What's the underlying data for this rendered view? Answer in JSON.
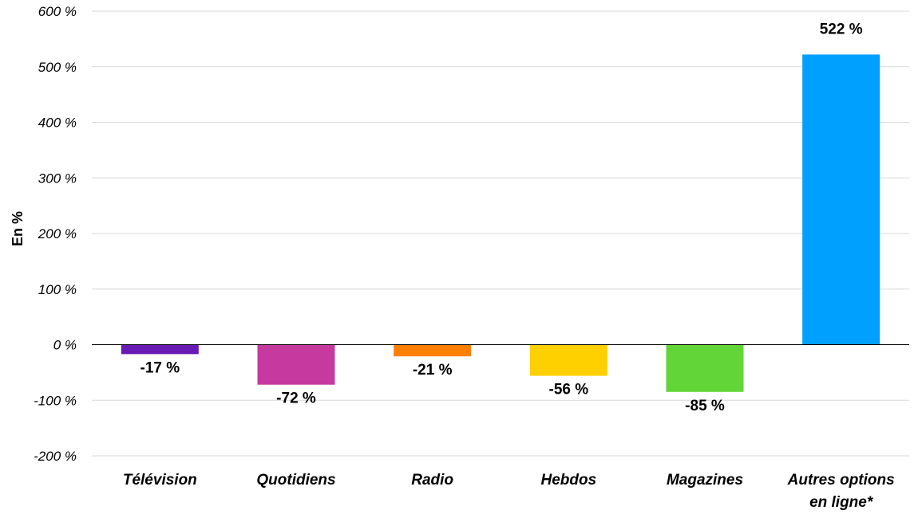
{
  "chart_data": {
    "type": "bar",
    "title": "",
    "xlabel": "",
    "ylabel": "En %",
    "ylim": [
      -200,
      600
    ],
    "yticks": [
      600,
      500,
      400,
      300,
      200,
      100,
      0,
      -100,
      -200
    ],
    "ytick_labels": [
      "600 %",
      "500 %",
      "400 %",
      "300 %",
      "200 %",
      "100 %",
      "0 %",
      "-100 %",
      "-200 %"
    ],
    "grid": true,
    "legend": "none",
    "categories": [
      [
        "Télévision"
      ],
      [
        "Quotidiens"
      ],
      [
        "Radio"
      ],
      [
        "Hebdos"
      ],
      [
        "Magazines"
      ],
      [
        "Autres options",
        "en ligne*"
      ]
    ],
    "values": [
      -17,
      -72,
      -21,
      -56,
      -85,
      522
    ],
    "value_labels": [
      "-17 %",
      "-72 %",
      "-21 %",
      "-56 %",
      "-85 %",
      "522 %"
    ],
    "colors": [
      "#6a1bb5",
      "#c63aa0",
      "#ff8000",
      "#ffd000",
      "#62d638",
      "#00a0ff"
    ]
  }
}
